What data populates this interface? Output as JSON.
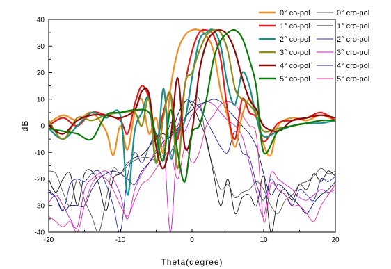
{
  "chart_data": {
    "type": "line",
    "title": "",
    "xlabel": "Theta(degree)",
    "ylabel": "dB",
    "xlim": [
      -20,
      20
    ],
    "ylim": [
      -40,
      40
    ],
    "xticks": [
      -20,
      -10,
      0,
      10,
      20
    ],
    "yticks": [
      -40,
      -30,
      -20,
      -10,
      0,
      10,
      20,
      30,
      40
    ],
    "grid": false,
    "legend_position": "top-right",
    "series": [
      {
        "name": "0° co-pol",
        "color": "#f28c1e",
        "stroke": "thick",
        "x": [
          -20,
          -18,
          -16,
          -14,
          -12,
          -11,
          -10,
          -9,
          -8,
          -7,
          -6,
          -5,
          -4,
          -3,
          -2,
          -1,
          0,
          1,
          2,
          3,
          4,
          5,
          6,
          7,
          8,
          9,
          10,
          11,
          12,
          14,
          16,
          18,
          20
        ],
        "y": [
          1,
          4,
          2,
          5,
          -2,
          -11,
          0,
          -9,
          5,
          10,
          -3,
          3,
          -10,
          14,
          28,
          34,
          36,
          36,
          34,
          28,
          13,
          3,
          -8,
          4,
          10,
          4,
          -7,
          -11,
          0,
          3,
          2,
          4,
          2
        ]
      },
      {
        "name": "1° co-pol",
        "color": "#e31a1c",
        "stroke": "thick",
        "x": [
          -20,
          -18,
          -16,
          -14,
          -12,
          -10,
          -9,
          -8,
          -7,
          -6,
          -5,
          -4,
          -3,
          -2,
          -1,
          0,
          1,
          2,
          3,
          4,
          5,
          6,
          7,
          8,
          9,
          10,
          12,
          14,
          16,
          18,
          20
        ],
        "y": [
          0,
          3,
          0,
          5,
          4,
          2,
          -3,
          8,
          15,
          10,
          -5,
          5,
          12,
          -5,
          15,
          28,
          35,
          36,
          34,
          25,
          5,
          -5,
          10,
          5,
          3,
          -6,
          1,
          2,
          3,
          5,
          2
        ]
      },
      {
        "name": "2° co-pol",
        "color": "#1a9089",
        "stroke": "thick",
        "x": [
          -20,
          -18,
          -16,
          -14,
          -12,
          -10,
          -9,
          -8,
          -7,
          -6,
          -5,
          -4,
          -3,
          -2,
          -1,
          0,
          1,
          2,
          3,
          4,
          5,
          6,
          7,
          8,
          9,
          10,
          12,
          14,
          16,
          18,
          20
        ],
        "y": [
          -1,
          -5,
          0,
          5,
          3,
          4,
          -26,
          -2,
          5,
          10,
          -14,
          14,
          -12,
          -2,
          2,
          18,
          32,
          35,
          36,
          30,
          15,
          8,
          20,
          15,
          3,
          -4,
          -2,
          0,
          1,
          1,
          2
        ]
      },
      {
        "name": "3° co-pol",
        "color": "#8c8c1a",
        "stroke": "thick",
        "x": [
          -20,
          -18,
          -16,
          -14,
          -12,
          -10,
          -8,
          -7,
          -6,
          -5,
          -4,
          -3,
          -2,
          -1,
          0,
          1,
          2,
          3,
          4,
          5,
          6,
          7,
          8,
          9,
          10,
          12,
          14,
          16,
          18,
          20
        ],
        "y": [
          2,
          -5,
          3,
          2,
          4,
          5,
          5,
          0,
          10,
          -14,
          3,
          12,
          -16,
          15,
          20,
          28,
          34,
          36,
          35,
          28,
          14,
          10,
          8,
          4,
          -2,
          -1,
          0,
          1,
          2,
          2
        ]
      },
      {
        "name": "4° co-pol",
        "color": "#8b0a0a",
        "stroke": "thick",
        "x": [
          -20,
          -18,
          -16,
          -14,
          -12,
          -10,
          -8,
          -7,
          -6,
          -5,
          -4,
          -3,
          -2,
          -1,
          0,
          1,
          2,
          3,
          4,
          5,
          6,
          7,
          8,
          9,
          10,
          12,
          14,
          16,
          18,
          20
        ],
        "y": [
          0,
          -3,
          2,
          4,
          4,
          3,
          6,
          13,
          12,
          -8,
          -16,
          -5,
          18,
          -8,
          -2,
          20,
          31,
          35,
          36,
          34,
          28,
          18,
          10,
          6,
          0,
          -2,
          2,
          3,
          4,
          3
        ]
      },
      {
        "name": "5° co-pol",
        "color": "#0a7a0a",
        "stroke": "thick",
        "x": [
          -20,
          -18,
          -16,
          -14,
          -12,
          -10,
          -8,
          -6,
          -5,
          -4,
          -3,
          -2,
          -1,
          0,
          1,
          2,
          3,
          4,
          5,
          6,
          7,
          8,
          9,
          10,
          12,
          14,
          16,
          18,
          20
        ],
        "y": [
          -1,
          -2,
          -3,
          -5,
          4,
          5,
          6,
          5,
          -4,
          -13,
          6,
          -10,
          -21,
          -3,
          0,
          10,
          25,
          32,
          35,
          36,
          33,
          25,
          14,
          -10,
          -2,
          0,
          1,
          2,
          2
        ]
      },
      {
        "name": "0° cro-pol",
        "color": "#555555",
        "stroke": "thin",
        "x": [
          -20,
          -19,
          -18,
          -17,
          -16,
          -15,
          -14,
          -13,
          -12,
          -11,
          -10,
          -9,
          -8,
          -7,
          -6,
          -5,
          -4,
          -3,
          -2,
          -1,
          0,
          1,
          2,
          3,
          4,
          5,
          6,
          7,
          8,
          9,
          10,
          11,
          12,
          13,
          14,
          15,
          16,
          17,
          18,
          19,
          20
        ],
        "y": [
          -17,
          -18,
          -25,
          -30,
          -20,
          -28,
          -34,
          -40,
          -28,
          -16,
          -18,
          -15,
          -13,
          -12,
          -12,
          -13,
          -11,
          -10,
          -4,
          2,
          8,
          10,
          -6,
          -16,
          -24,
          -22,
          -27,
          -25,
          -24,
          -21,
          -24,
          -30,
          -33,
          -28,
          -26,
          -22,
          -21,
          -19,
          -16,
          -18,
          -17
        ]
      },
      {
        "name": "1° cro-pol",
        "color": "#111111",
        "stroke": "thin",
        "x": [
          -20,
          -19,
          -18,
          -17,
          -16,
          -15,
          -14,
          -13,
          -12,
          -11,
          -10,
          -9,
          -8,
          -7,
          -6,
          -5,
          -4,
          -3,
          -2,
          -1,
          0,
          1,
          2,
          3,
          4,
          5,
          6,
          7,
          8,
          9,
          10,
          11,
          12,
          13,
          14,
          15,
          16,
          17,
          18,
          19,
          20
        ],
        "y": [
          -20,
          -25,
          -20,
          -18,
          -30,
          -18,
          -17,
          -22,
          -32,
          -20,
          -18,
          -14,
          -12,
          -11,
          -8,
          -4,
          -3,
          -4,
          4,
          9,
          8,
          2,
          -5,
          -18,
          -30,
          -20,
          -33,
          -27,
          -26,
          -30,
          -19,
          -40,
          -27,
          -24,
          -28,
          -22,
          -24,
          -18,
          -21,
          -17,
          -19
        ]
      },
      {
        "name": "2° cro-pol",
        "color": "#1f2fa8",
        "stroke": "thin",
        "x": [
          -20,
          -19,
          -18,
          -17,
          -16,
          -15,
          -14,
          -13,
          -12,
          -11,
          -10,
          -9,
          -8,
          -7,
          -6,
          -5,
          -4,
          -3,
          -2,
          -1,
          0,
          1,
          2,
          3,
          4,
          5,
          6,
          7,
          8,
          9,
          10,
          11,
          12,
          13,
          14,
          15,
          16,
          17,
          18,
          19,
          20
        ],
        "y": [
          -25,
          -27,
          -32,
          -22,
          -20,
          -21,
          -18,
          -17,
          -22,
          -30,
          -40,
          -19,
          -10,
          -14,
          -8,
          -3,
          -8,
          1,
          0,
          9,
          9,
          7,
          2,
          -3,
          -8,
          -10,
          -2,
          -10,
          -12,
          -22,
          -28,
          -20,
          -24,
          -26,
          -30,
          -24,
          -26,
          -28,
          -20,
          -21,
          -19
        ]
      },
      {
        "name": "3° cro-pol",
        "color": "#c81ec8",
        "stroke": "thin",
        "x": [
          -20,
          -19,
          -18,
          -17,
          -16,
          -15,
          -14,
          -13,
          -12,
          -11,
          -10,
          -9,
          -8,
          -7,
          -6,
          -5,
          -4,
          -3,
          -2,
          -1,
          0,
          1,
          2,
          3,
          4,
          5,
          6,
          7,
          8,
          9,
          10,
          11,
          12,
          13,
          14,
          15,
          16,
          17,
          18,
          19,
          20
        ],
        "y": [
          -29,
          -26,
          -30,
          -35,
          -38,
          -24,
          -20,
          -18,
          -17,
          -20,
          -26,
          -35,
          -24,
          -18,
          -14,
          -9,
          -6,
          -40,
          -4,
          -2,
          4,
          7,
          9,
          8,
          5,
          2,
          0,
          -4,
          -14,
          -25,
          -34,
          -18,
          -20,
          -22,
          -24,
          -27,
          -28,
          -26,
          -24,
          -25,
          -24
        ]
      },
      {
        "name": "4° cro-pol",
        "color": "#141478",
        "stroke": "thin",
        "x": [
          -20,
          -19,
          -18,
          -17,
          -16,
          -15,
          -14,
          -13,
          -12,
          -11,
          -10,
          -9,
          -8,
          -7,
          -6,
          -5,
          -4,
          -3,
          -2,
          -1,
          0,
          1,
          2,
          3,
          4,
          5,
          6,
          7,
          8,
          9,
          10,
          11,
          12,
          13,
          14,
          15,
          16,
          17,
          18,
          19,
          20
        ],
        "y": [
          -24,
          -27,
          -32,
          -30,
          -30,
          -30,
          -24,
          -20,
          -18,
          -17,
          -18,
          -20,
          -22,
          -17,
          -14,
          -10,
          -6,
          -4,
          -1,
          3,
          6,
          8,
          9,
          10,
          9,
          6,
          3,
          0,
          -3,
          -8,
          -18,
          -26,
          -22,
          -24,
          -27,
          -30,
          -33,
          -29,
          -26,
          -24,
          -21
        ]
      },
      {
        "name": "5° cro-pol",
        "color": "#e8299a",
        "stroke": "thin",
        "x": [
          -20,
          -19,
          -18,
          -17,
          -16,
          -15,
          -14,
          -13,
          -12,
          -11,
          -10,
          -9,
          -8,
          -7,
          -6,
          -5,
          -4,
          -3,
          -2,
          -1,
          0,
          1,
          2,
          3,
          4,
          5,
          6,
          7,
          8,
          9,
          10,
          11,
          12,
          13,
          14,
          15,
          16,
          17,
          18,
          19,
          20
        ],
        "y": [
          -34,
          -36,
          -38,
          -36,
          -40,
          -30,
          -22,
          -19,
          -20,
          -24,
          -30,
          -34,
          -28,
          -22,
          -20,
          -16,
          -12,
          -10,
          -20,
          -8,
          -14,
          -10,
          0,
          4,
          8,
          9,
          8,
          4,
          0,
          -4,
          -36,
          -22,
          -24,
          -26,
          -30,
          -30,
          -33,
          -36,
          -30,
          -26,
          -22
        ]
      }
    ]
  }
}
